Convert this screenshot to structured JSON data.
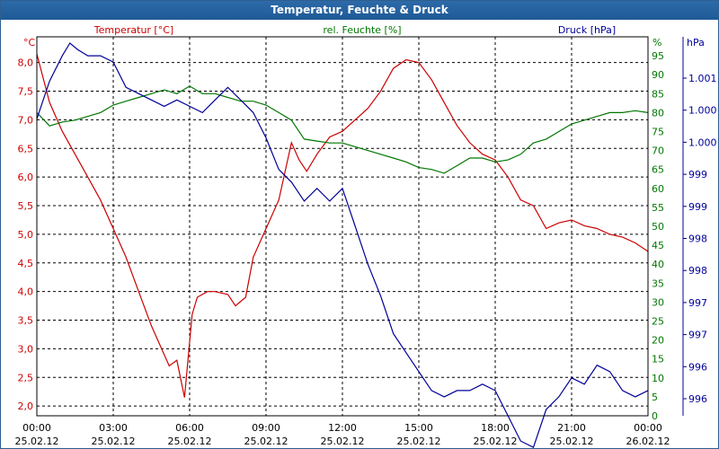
{
  "window": {
    "title": "Temperatur, Feuchte & Druck"
  },
  "colors": {
    "temperature": "#cc0000",
    "humidity": "#007700",
    "pressure": "#000099",
    "grid": "#000000"
  },
  "chart_data": {
    "type": "line",
    "title": "Temperatur, Feuchte & Druck",
    "x_ticks": [
      {
        "time": "00:00",
        "date": "25.02.12"
      },
      {
        "time": "03:00",
        "date": "25.02.12"
      },
      {
        "time": "06:00",
        "date": "25.02.12"
      },
      {
        "time": "09:00",
        "date": "25.02.12"
      },
      {
        "time": "12:00",
        "date": "25.02.12"
      },
      {
        "time": "15:00",
        "date": "25.02.12"
      },
      {
        "time": "18:00",
        "date": "25.02.12"
      },
      {
        "time": "21:00",
        "date": "25.02.12"
      },
      {
        "time": "00:00",
        "date": "26.02.12"
      }
    ],
    "xlim": [
      0,
      24
    ],
    "axes": {
      "temperature": {
        "label": "Temperatur [°C]",
        "unit": "°C",
        "ylim": [
          1.83,
          8.45
        ],
        "ticks": [
          "2,0",
          "2,5",
          "3,0",
          "3,5",
          "4,0",
          "4,5",
          "5,0",
          "5,5",
          "6,0",
          "6,5",
          "7,0",
          "7,5",
          "8,0"
        ]
      },
      "humidity": {
        "label": "rel. Feuchte [%]",
        "unit": "%",
        "ylim": [
          0,
          100
        ],
        "ticks": [
          "0",
          "5",
          "10",
          "15",
          "20",
          "25",
          "30",
          "35",
          "40",
          "45",
          "50",
          "55",
          "60",
          "65",
          "70",
          "75",
          "80",
          "85",
          "90",
          "95"
        ]
      },
      "pressure": {
        "label": "Druck [hPa]",
        "unit": "hPa",
        "ylim": [
          995.5,
          1001.5
        ],
        "ticks": [
          "1.001",
          "1.000",
          "1.000",
          "999",
          "999",
          "998",
          "998",
          "997",
          "997",
          "996",
          "996"
        ]
      }
    },
    "series": [
      {
        "name": "Temperatur",
        "axis": "temperature",
        "x": [
          0,
          0.5,
          1,
          1.5,
          2,
          2.5,
          3,
          3.5,
          4,
          4.5,
          4.9,
          5.2,
          5.5,
          5.8,
          6.1,
          6.3,
          6.7,
          7,
          7.5,
          7.8,
          8.2,
          8.5,
          9,
          9.5,
          10,
          10.3,
          10.6,
          11,
          11.5,
          12,
          12.5,
          13,
          13.5,
          14,
          14.5,
          15,
          15.5,
          16,
          16.5,
          17,
          17.5,
          18,
          18.5,
          19,
          19.5,
          20,
          20.5,
          21,
          21.5,
          22,
          22.5,
          23,
          23.5,
          24
        ],
        "values": [
          8.15,
          7.3,
          6.8,
          6.4,
          6.0,
          5.6,
          5.1,
          4.6,
          4.0,
          3.4,
          3.0,
          2.7,
          2.8,
          2.15,
          3.6,
          3.9,
          4.0,
          4.0,
          3.95,
          3.75,
          3.9,
          4.6,
          5.1,
          5.6,
          6.6,
          6.3,
          6.1,
          6.4,
          6.7,
          6.8,
          7.0,
          7.2,
          7.5,
          7.9,
          8.05,
          8.0,
          7.7,
          7.3,
          6.9,
          6.6,
          6.4,
          6.3,
          6.0,
          5.6,
          5.5,
          5.1,
          5.2,
          5.25,
          5.15,
          5.1,
          5.0,
          4.95,
          4.85,
          4.7
        ]
      },
      {
        "name": "rel. Feuchte",
        "axis": "humidity",
        "x": [
          0,
          0.5,
          1,
          1.5,
          2,
          2.5,
          3,
          3.5,
          4,
          4.5,
          5,
          5.5,
          6,
          6.5,
          7,
          7.5,
          8,
          8.5,
          9,
          9.5,
          10,
          10.5,
          11,
          11.5,
          12,
          12.5,
          13,
          13.5,
          14,
          14.5,
          15,
          15.5,
          16,
          16.5,
          17,
          17.5,
          18,
          18.5,
          19,
          19.5,
          20,
          20.5,
          21,
          21.5,
          22,
          22.5,
          23,
          23.5,
          24
        ],
        "values": [
          80,
          76.5,
          77.5,
          78,
          79,
          80,
          82,
          83,
          84,
          85,
          86,
          85,
          87,
          85,
          85,
          84,
          83,
          83,
          82,
          80,
          78,
          73,
          72.5,
          72,
          72,
          71,
          70,
          69,
          68,
          67,
          65.5,
          65,
          64,
          66,
          68,
          68,
          67,
          67.5,
          69,
          72,
          73,
          75,
          77,
          78,
          79,
          80,
          80,
          80.5,
          80
        ]
      },
      {
        "name": "Druck",
        "axis": "pressure",
        "x": [
          0,
          0.5,
          1,
          1.3,
          1.6,
          2,
          2.5,
          3,
          3.5,
          4,
          4.5,
          5,
          5.5,
          6,
          6.5,
          7,
          7.5,
          8,
          8.5,
          9,
          9.5,
          10,
          10.5,
          11,
          11.5,
          12,
          12.5,
          13,
          13.5,
          14,
          14.5,
          15,
          15.5,
          16,
          16.5,
          17,
          17.5,
          18,
          18.5,
          19,
          19.5,
          20,
          20.5,
          21,
          21.5,
          22,
          22.5,
          23,
          23.5,
          24
        ],
        "values": [
          1000.2,
          1000.8,
          1001.2,
          1001.4,
          1001.3,
          1001.2,
          1001.2,
          1001.1,
          1000.7,
          1000.6,
          1000.5,
          1000.4,
          1000.5,
          1000.4,
          1000.3,
          1000.5,
          1000.7,
          1000.5,
          1000.3,
          999.9,
          999.4,
          999.2,
          998.9,
          999.1,
          998.9,
          999.1,
          998.5,
          997.9,
          997.4,
          996.8,
          996.5,
          996.2,
          995.9,
          995.8,
          995.9,
          995.9,
          996.0,
          995.9,
          995.5,
          995.1,
          995.0,
          995.6,
          995.8,
          996.1,
          996.0,
          996.3,
          996.2,
          995.9,
          995.8,
          995.9
        ]
      }
    ]
  }
}
